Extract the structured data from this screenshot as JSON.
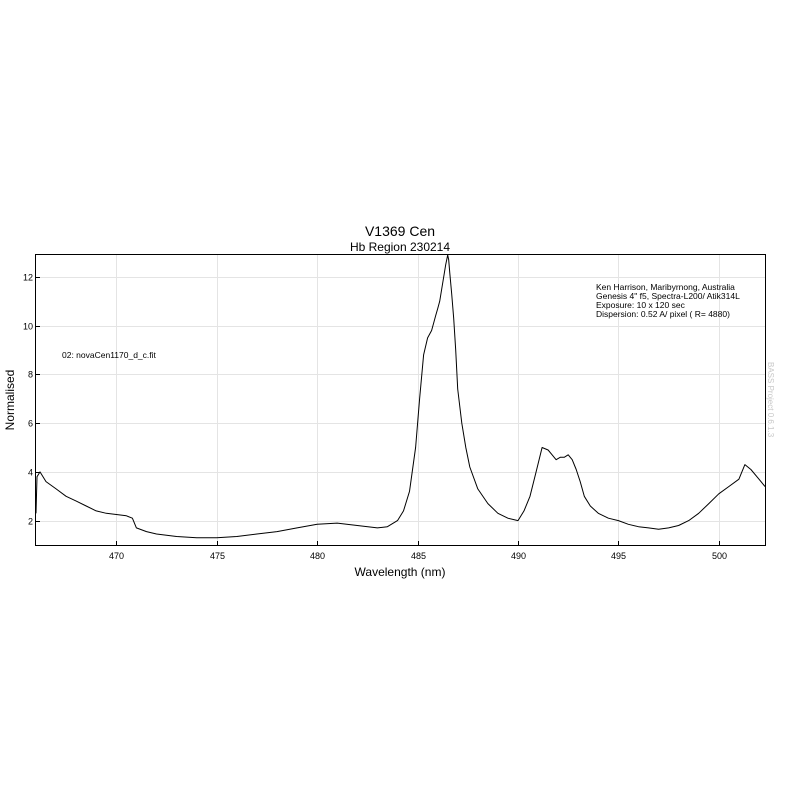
{
  "chart_data": {
    "type": "line",
    "title": "V1369 Cen",
    "subtitle": "Hb Region 230214",
    "xlabel": "Wavelength (nm)",
    "ylabel": "Normalised",
    "xlim": [
      466.0,
      502.3
    ],
    "ylim": [
      1.0,
      12.9
    ],
    "xticks": [
      470,
      475,
      480,
      485,
      490,
      495,
      500
    ],
    "yticks": [
      2,
      4,
      6,
      8,
      10,
      12
    ],
    "grid": true,
    "series_label": "02: novaCen1170_d_c.fit",
    "annotations": [
      "Ken Harrison, Maribyrnong, Australia",
      "Genesis 4\" f5, Spectra-L200/ Atik314L",
      "Exposure: 10 x 120 sec",
      "Dispersion: 0.52 A/ pixel ( R= 4880)"
    ],
    "watermark": "BASS Project 0.6.1.3",
    "series": [
      {
        "x": [
          466.0,
          466.05,
          466.2,
          466.5,
          467.0,
          467.5,
          468.0,
          468.5,
          469.0,
          469.5,
          470.0,
          470.5,
          470.8,
          471.0,
          471.5,
          472.0,
          473.0,
          474.0,
          475.0,
          476.0,
          477.0,
          478.0,
          479.0,
          480.0,
          481.0,
          482.0,
          483.0,
          483.5,
          484.0,
          484.3,
          484.6,
          484.9,
          485.1,
          485.3,
          485.5,
          485.7,
          485.8,
          485.9,
          486.0,
          486.1,
          486.2,
          486.3,
          486.4,
          486.5,
          486.55,
          486.6,
          486.7,
          486.8,
          486.9,
          487.0,
          487.2,
          487.4,
          487.6,
          488.0,
          488.5,
          489.0,
          489.5,
          490.0,
          490.3,
          490.6,
          490.9,
          491.2,
          491.5,
          491.7,
          491.9,
          492.1,
          492.3,
          492.5,
          492.7,
          492.9,
          493.1,
          493.3,
          493.6,
          494.0,
          494.5,
          495.0,
          495.5,
          496.0,
          496.5,
          497.0,
          497.5,
          498.0,
          498.5,
          499.0,
          499.5,
          500.0,
          500.5,
          501.0,
          501.3,
          501.6,
          502.0,
          502.3
        ],
        "y": [
          2.3,
          3.8,
          4.0,
          3.6,
          3.3,
          3.0,
          2.8,
          2.6,
          2.4,
          2.3,
          2.25,
          2.2,
          2.1,
          1.7,
          1.55,
          1.45,
          1.35,
          1.3,
          1.3,
          1.35,
          1.45,
          1.55,
          1.7,
          1.85,
          1.9,
          1.8,
          1.7,
          1.75,
          2.0,
          2.4,
          3.2,
          5.0,
          7.0,
          8.8,
          9.5,
          9.8,
          10.1,
          10.4,
          10.7,
          11.0,
          11.5,
          12.0,
          12.5,
          12.9,
          12.7,
          12.2,
          11.3,
          10.3,
          9.0,
          7.4,
          6.0,
          5.0,
          4.2,
          3.3,
          2.7,
          2.3,
          2.1,
          2.0,
          2.4,
          3.0,
          4.0,
          5.0,
          4.9,
          4.7,
          4.5,
          4.6,
          4.6,
          4.7,
          4.5,
          4.1,
          3.6,
          3.0,
          2.6,
          2.3,
          2.1,
          2.0,
          1.85,
          1.75,
          1.7,
          1.65,
          1.7,
          1.8,
          2.0,
          2.3,
          2.7,
          3.1,
          3.4,
          3.7,
          4.3,
          4.1,
          3.7,
          3.4
        ]
      }
    ]
  }
}
